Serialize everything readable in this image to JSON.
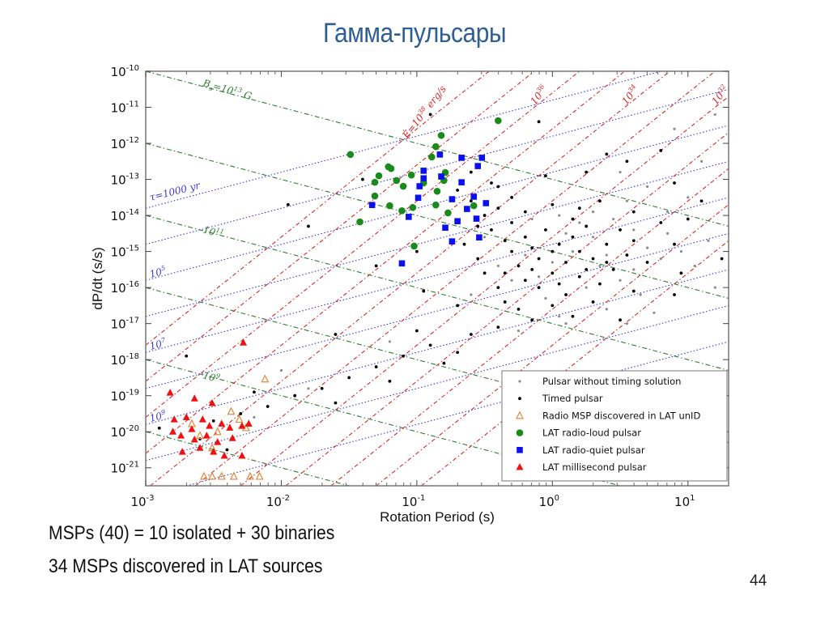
{
  "slide": {
    "title": "Гамма-пульсары",
    "bullets": [
      "MSPs (40) = 10 isolated + 30 binaries",
      "34 MSPs discovered in LAT sources"
    ],
    "page_number": "44"
  },
  "chart_data": {
    "type": "scatter",
    "title": "",
    "xlabel": "Rotation Period (s)",
    "ylabel": "dP/dt (s/s)",
    "xscale": "log",
    "yscale": "log",
    "xlim_log10": [
      -3,
      1.3
    ],
    "ylim_log10": [
      -21.5,
      -10
    ],
    "xticks": [
      {
        "v": -3,
        "base": "10",
        "exp": "-3"
      },
      {
        "v": -2,
        "base": "10",
        "exp": "-2"
      },
      {
        "v": -1,
        "base": "10",
        "exp": "-1"
      },
      {
        "v": 0,
        "base": "10",
        "exp": "0"
      },
      {
        "v": 1,
        "base": "10",
        "exp": "1"
      }
    ],
    "yticks": [
      {
        "v": -10,
        "base": "10",
        "exp": "-10"
      },
      {
        "v": -11,
        "base": "10",
        "exp": "-11"
      },
      {
        "v": -12,
        "base": "10",
        "exp": "-12"
      },
      {
        "v": -13,
        "base": "10",
        "exp": "-13"
      },
      {
        "v": -14,
        "base": "10",
        "exp": "-14"
      },
      {
        "v": -15,
        "base": "10",
        "exp": "-15"
      },
      {
        "v": -16,
        "base": "10",
        "exp": "-16"
      },
      {
        "v": -17,
        "base": "10",
        "exp": "-17"
      },
      {
        "v": -18,
        "base": "10",
        "exp": "-18"
      },
      {
        "v": -19,
        "base": "10",
        "exp": "-19"
      },
      {
        "v": -20,
        "base": "10",
        "exp": "-20"
      },
      {
        "v": -21,
        "base": "10",
        "exp": "-21"
      }
    ],
    "legend_position": "bottom-right",
    "series": [
      {
        "name": "Pulsar without timing solution",
        "marker": "dot-small",
        "color": "#8c8c8c",
        "points_log10": [
          [
            0.2,
            -14.2
          ],
          [
            0.3,
            -14.6
          ],
          [
            0.45,
            -14.1
          ],
          [
            0.6,
            -14.4
          ],
          [
            0.7,
            -14.9
          ],
          [
            0.8,
            -15.2
          ],
          [
            0.85,
            -14.5
          ],
          [
            0.95,
            -15.0
          ],
          [
            1.05,
            -15.4
          ],
          [
            1.15,
            -14.7
          ],
          [
            0.1,
            -14.5
          ],
          [
            0.0,
            -15.3
          ],
          [
            -0.1,
            -15.7
          ],
          [
            -0.2,
            -15.1
          ],
          [
            -0.3,
            -15.8
          ],
          [
            0.35,
            -15.4
          ],
          [
            0.5,
            -15.8
          ],
          [
            0.65,
            -16.2
          ],
          [
            0.25,
            -16.0
          ],
          [
            -0.05,
            -16.3
          ],
          [
            -0.25,
            -17.2
          ],
          [
            0.1,
            -17.0
          ],
          [
            0.4,
            -16.6
          ],
          [
            0.75,
            -16.7
          ],
          [
            1.2,
            -16.0
          ],
          [
            1.0,
            -13.5
          ],
          [
            0.7,
            -13.2
          ],
          [
            0.5,
            -12.8
          ],
          [
            1.1,
            -12.5
          ],
          [
            0.9,
            -11.6
          ],
          [
            1.2,
            -11.2
          ],
          [
            -0.5,
            -14.6
          ],
          [
            -0.6,
            -16.2
          ],
          [
            -1.8,
            -18.8
          ],
          [
            -2.2,
            -19.6
          ],
          [
            -2.0,
            -18.3
          ],
          [
            -1.2,
            -17.5
          ],
          [
            0.05,
            -14.0
          ],
          [
            0.55,
            -13.6
          ],
          [
            -0.15,
            -14.1
          ],
          [
            0.15,
            -15.0
          ],
          [
            0.4,
            -15.1
          ],
          [
            0.6,
            -15.5
          ],
          [
            0.3,
            -13.9
          ],
          [
            0.85,
            -13.9
          ],
          [
            -0.4,
            -15.4
          ],
          [
            0.05,
            -16.8
          ],
          [
            0.55,
            -17.0
          ]
        ]
      },
      {
        "name": "Timed pulsar",
        "marker": "dot",
        "color": "#000000",
        "points_log10": [
          [
            -0.6,
            -13.6
          ],
          [
            -0.5,
            -14.0
          ],
          [
            -0.45,
            -14.4
          ],
          [
            -0.4,
            -13.8
          ],
          [
            -0.35,
            -14.7
          ],
          [
            -0.3,
            -15.0
          ],
          [
            -0.3,
            -14.2
          ],
          [
            -0.25,
            -15.4
          ],
          [
            -0.2,
            -14.6
          ],
          [
            -0.2,
            -15.8
          ],
          [
            -0.15,
            -14.9
          ],
          [
            -0.1,
            -15.2
          ],
          [
            -0.1,
            -16.0
          ],
          [
            -0.05,
            -14.4
          ],
          [
            0,
            -15.0
          ],
          [
            0,
            -15.6
          ],
          [
            0.05,
            -14.8
          ],
          [
            0.1,
            -15.3
          ],
          [
            0.1,
            -16.2
          ],
          [
            0.15,
            -14.6
          ],
          [
            0.2,
            -15.0
          ],
          [
            0.2,
            -15.7
          ],
          [
            0.25,
            -14.3
          ],
          [
            0.3,
            -15.2
          ],
          [
            0.35,
            -15.9
          ],
          [
            0.4,
            -14.8
          ],
          [
            0.45,
            -15.5
          ],
          [
            0.5,
            -14.4
          ],
          [
            0.55,
            -15.1
          ],
          [
            0.6,
            -14.7
          ],
          [
            0.7,
            -15.3
          ],
          [
            -0.55,
            -15.2
          ],
          [
            -0.5,
            -15.6
          ],
          [
            -0.4,
            -16.0
          ],
          [
            -0.35,
            -16.4
          ],
          [
            -0.25,
            -16.6
          ],
          [
            -0.15,
            -16.9
          ],
          [
            0.0,
            -16.5
          ],
          [
            0.3,
            -16.4
          ],
          [
            -0.65,
            -14.8
          ],
          [
            -0.7,
            -13.3
          ],
          [
            -0.6,
            -12.8
          ],
          [
            -0.45,
            -13.1
          ],
          [
            -0.3,
            -13.5
          ],
          [
            -0.2,
            -13.9
          ],
          [
            0.0,
            -13.7
          ],
          [
            0.2,
            -13.8
          ],
          [
            0.35,
            -13.6
          ],
          [
            0.6,
            -13.9
          ],
          [
            0.8,
            -14.2
          ],
          [
            0.9,
            -13.1
          ],
          [
            0.55,
            -12.5
          ],
          [
            0.4,
            -12.3
          ],
          [
            -0.05,
            -12.9
          ],
          [
            0.25,
            -12.8
          ],
          [
            0.8,
            -12.2
          ],
          [
            0.95,
            -15.6
          ],
          [
            0.9,
            -14.8
          ],
          [
            1.0,
            -14.1
          ],
          [
            1.1,
            -13.6
          ],
          [
            -2.5,
            -19.7
          ],
          [
            -2.3,
            -19.5
          ],
          [
            -2.1,
            -19.3
          ],
          [
            -1.9,
            -19.0
          ],
          [
            -1.7,
            -18.8
          ],
          [
            -1.5,
            -18.5
          ],
          [
            -1.3,
            -18.2
          ],
          [
            -1.1,
            -17.9
          ],
          [
            -0.9,
            -17.6
          ],
          [
            -0.7,
            -17.8
          ],
          [
            -1.2,
            -18.6
          ],
          [
            -1.6,
            -19.2
          ],
          [
            -2.7,
            -17.9
          ],
          [
            -2.2,
            -18.9
          ],
          [
            -1.0,
            -17.2
          ],
          [
            -0.8,
            -18.1
          ],
          [
            -1.6,
            -17.3
          ],
          [
            -2.6,
            -20.2
          ],
          [
            -2.4,
            -20.5
          ],
          [
            -2.9,
            -19.9
          ],
          [
            -1.4,
            -13.0
          ],
          [
            -1.95,
            -13.7
          ],
          [
            -1.8,
            -14.3
          ],
          [
            -1.3,
            -15.4
          ],
          [
            -1.0,
            -15.0
          ],
          [
            -0.95,
            -16.1
          ],
          [
            -0.7,
            -16.5
          ],
          [
            -0.6,
            -17.3
          ],
          [
            -0.4,
            -17.1
          ],
          [
            0.6,
            -16.1
          ],
          [
            0.9,
            -16.2
          ],
          [
            1.25,
            -15.2
          ],
          [
            -0.9,
            -11.2
          ],
          [
            -0.1,
            -11.4
          ],
          [
            -0.4,
            -13.2
          ],
          [
            0.15,
            -16.8
          ],
          [
            0.5,
            -16.9
          ],
          [
            -0.15,
            -15.5
          ],
          [
            0.05,
            -15.9
          ],
          [
            0.25,
            -15.5
          ],
          [
            -0.35,
            -15.6
          ],
          [
            0.4,
            -15.3
          ],
          [
            0.15,
            -14.1
          ],
          [
            -0.55,
            -14.3
          ]
        ]
      },
      {
        "name": "Radio MSP discovered in LAT unID",
        "marker": "triangle-open",
        "color": "#e08a3c",
        "points_log10": [
          [
            -2.12,
            -18.54
          ],
          [
            -2.57,
            -21.24
          ],
          [
            -2.51,
            -21.24
          ],
          [
            -2.44,
            -21.24
          ],
          [
            -2.35,
            -21.24
          ],
          [
            -2.23,
            -21.24
          ],
          [
            -2.16,
            -21.24
          ],
          [
            -2.66,
            -19.78
          ],
          [
            -2.6,
            -20.11
          ],
          [
            -2.47,
            -20.0
          ],
          [
            -2.37,
            -19.44
          ],
          [
            -2.31,
            -19.66
          ],
          [
            -2.26,
            -19.89
          ],
          [
            -2.51,
            -20.45
          ]
        ]
      },
      {
        "name": "LAT radio-loud pulsar",
        "marker": "circle",
        "color": "#1a8a1a",
        "points_log10": [
          [
            -1.49,
            -12.31
          ],
          [
            -0.82,
            -11.78
          ],
          [
            -0.4,
            -11.37
          ],
          [
            -0.86,
            -12.09
          ],
          [
            -0.89,
            -12.38
          ],
          [
            -1.21,
            -12.65
          ],
          [
            -1.19,
            -12.7
          ],
          [
            -1.31,
            -13.08
          ],
          [
            -1.31,
            -13.46
          ],
          [
            -1.15,
            -13.03
          ],
          [
            -1.1,
            -13.19
          ],
          [
            -1.04,
            -12.88
          ],
          [
            -0.95,
            -13.1
          ],
          [
            -0.85,
            -13.33
          ],
          [
            -0.8,
            -13.03
          ],
          [
            -0.79,
            -12.81
          ],
          [
            -1.28,
            -12.9
          ],
          [
            -1.2,
            -13.73
          ],
          [
            -1.11,
            -13.87
          ],
          [
            -1.03,
            -13.78
          ],
          [
            -0.86,
            -13.71
          ],
          [
            -0.77,
            -13.93
          ],
          [
            -1.42,
            -14.18
          ],
          [
            -1.02,
            -14.85
          ],
          [
            -0.58,
            -13.73
          ]
        ]
      },
      {
        "name": "LAT radio-quiet pulsar",
        "marker": "square",
        "color": "#0a10f0",
        "points_log10": [
          [
            -0.83,
            -12.31
          ],
          [
            -0.95,
            -12.76
          ],
          [
            -0.67,
            -12.4
          ],
          [
            -0.52,
            -12.4
          ],
          [
            -0.55,
            -12.63
          ],
          [
            -0.95,
            -12.97
          ],
          [
            -0.98,
            -13.19
          ],
          [
            -0.82,
            -12.92
          ],
          [
            -0.67,
            -13.08
          ],
          [
            -0.58,
            -13.48
          ],
          [
            -0.74,
            -13.55
          ],
          [
            -0.63,
            -13.82
          ],
          [
            -0.56,
            -14.09
          ],
          [
            -0.7,
            -14.16
          ],
          [
            -0.79,
            -14.34
          ],
          [
            -0.74,
            -14.72
          ],
          [
            -0.99,
            -13.51
          ],
          [
            -1.06,
            -14.04
          ],
          [
            -1.33,
            -13.71
          ],
          [
            -1.11,
            -15.33
          ],
          [
            -0.54,
            -14.61
          ],
          [
            -0.49,
            -13.66
          ]
        ]
      },
      {
        "name": "LAT millisecond pulsar",
        "marker": "triangle",
        "color": "#ee1111",
        "points_log10": [
          [
            -2.82,
            -18.92
          ],
          [
            -2.28,
            -17.53
          ],
          [
            -2.64,
            -19.08
          ],
          [
            -2.51,
            -19.21
          ],
          [
            -2.79,
            -19.66
          ],
          [
            -2.7,
            -19.6
          ],
          [
            -2.58,
            -19.66
          ],
          [
            -2.53,
            -19.84
          ],
          [
            -2.44,
            -19.78
          ],
          [
            -2.38,
            -19.89
          ],
          [
            -2.29,
            -19.84
          ],
          [
            -2.24,
            -19.78
          ],
          [
            -2.74,
            -20.11
          ],
          [
            -2.64,
            -20.22
          ],
          [
            -2.55,
            -20.11
          ],
          [
            -2.47,
            -20.29
          ],
          [
            -2.36,
            -20.18
          ],
          [
            -2.6,
            -20.45
          ],
          [
            -2.5,
            -20.56
          ],
          [
            -2.73,
            -20.56
          ],
          [
            -2.29,
            -20.67
          ],
          [
            -2.42,
            -20.67
          ],
          [
            -2.8,
            -20.0
          ],
          [
            -2.66,
            -19.93
          ]
        ]
      }
    ],
    "reference_lines": {
      "magnetic_field": {
        "color": "#2e7d32",
        "log10_B_gauss": [
          13,
          12,
          11,
          10,
          9,
          8
        ],
        "labels": [
          {
            "log10_B": 13,
            "text": "B_s=10^13 G"
          },
          {
            "log10_B": 11,
            "text": "10^11"
          },
          {
            "log10_B": 9,
            "text": "10^9"
          }
        ]
      },
      "char_age": {
        "color": "#3b3bd0",
        "log10_tau_yr": [
          3,
          4,
          5,
          6,
          7,
          8,
          9,
          10,
          11
        ],
        "labels": [
          {
            "log10_tau": 3,
            "text": "τ=1000 yr"
          },
          {
            "log10_tau": 5,
            "text": "10^5"
          },
          {
            "log10_tau": 7,
            "text": "10^7"
          },
          {
            "log10_tau": 9,
            "text": "10^9"
          }
        ]
      },
      "spin_down_power": {
        "color": "#d62728",
        "log10_Edot_erg_s": [
          38,
          37,
          36,
          35,
          34,
          33,
          32,
          31,
          30,
          29,
          28
        ],
        "labels": [
          {
            "log10_Edot": 38,
            "text": "Ė=10^38 erg/s"
          },
          {
            "log10_Edot": 36,
            "text": "10^36"
          },
          {
            "log10_Edot": 34,
            "text": "10^34"
          },
          {
            "log10_Edot": 32,
            "text": "10^32"
          }
        ]
      }
    }
  }
}
